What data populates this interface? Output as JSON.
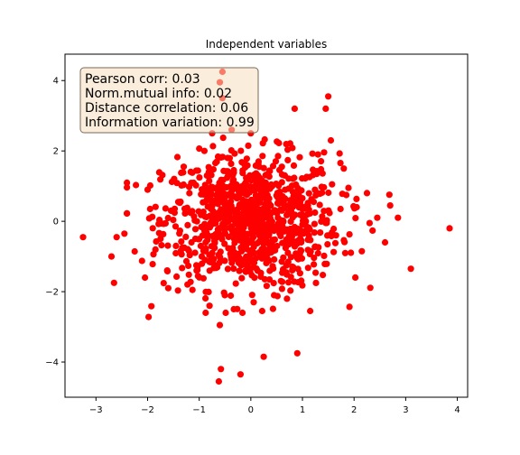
{
  "chart_data": {
    "type": "scatter",
    "title": "Independent variables",
    "xlabel": "",
    "ylabel": "",
    "xlim": [
      -3.6,
      4.2
    ],
    "ylim": [
      -5.0,
      4.75
    ],
    "xticks": [
      -3,
      -2,
      -1,
      0,
      1,
      2,
      3,
      4
    ],
    "yticks": [
      -4,
      -2,
      0,
      2,
      4
    ],
    "xtick_labels": [
      "−3",
      "−2",
      "−1",
      "0",
      "1",
      "2",
      "3",
      "4"
    ],
    "ytick_labels": [
      "−4",
      "−2",
      "0",
      "2",
      "4"
    ],
    "grid": false,
    "point_color": "#ff0000",
    "point_count": 1000,
    "annotation": {
      "lines": [
        "Pearson corr: 0.03",
        "Norm.mutual info: 0.02",
        "Distance correlation: 0.06",
        "Information variation: 0.99"
      ],
      "box_fill": "#f5dfbe",
      "box_edge": "#7a6a55",
      "placement": "top-left"
    },
    "series": [
      {
        "points": [
          [
            -3.25,
            -0.45
          ],
          [
            -2.7,
            -1.0
          ],
          [
            -2.65,
            -1.75
          ],
          [
            -2.6,
            -0.45
          ],
          [
            -2.45,
            -0.35
          ],
          [
            -2.05,
            -1.6
          ],
          [
            -1.98,
            -2.72
          ],
          [
            -2.0,
            0.9
          ],
          [
            -1.95,
            0.35
          ],
          [
            -1.6,
            -1.9
          ],
          [
            -1.45,
            -0.7
          ],
          [
            -1.3,
            1.55
          ],
          [
            -1.15,
            -0.6
          ],
          [
            -1.05,
            -1.4
          ],
          [
            -0.95,
            -1.0
          ],
          [
            -0.9,
            2.0
          ],
          [
            -0.85,
            1.3
          ],
          [
            -0.8,
            -2.4
          ],
          [
            -0.75,
            2.5
          ],
          [
            -0.6,
            -2.95
          ],
          [
            -0.6,
            3.95
          ],
          [
            -0.58,
            -4.2
          ],
          [
            -0.62,
            -4.55
          ],
          [
            -0.55,
            4.25
          ],
          [
            -0.55,
            3.5
          ],
          [
            -0.45,
            1.8
          ],
          [
            -0.2,
            -4.35
          ],
          [
            -0.2,
            -0.5
          ],
          [
            -0.1,
            1.1
          ],
          [
            0.0,
            2.5
          ],
          [
            0.05,
            -1.3
          ],
          [
            0.15,
            1.7
          ],
          [
            0.22,
            -2.55
          ],
          [
            0.25,
            -3.85
          ],
          [
            0.3,
            0.55
          ],
          [
            0.45,
            -2.1
          ],
          [
            0.6,
            1.55
          ],
          [
            0.7,
            -2.2
          ],
          [
            0.85,
            3.2
          ],
          [
            0.9,
            -3.75
          ],
          [
            1.0,
            0.35
          ],
          [
            1.15,
            -2.55
          ],
          [
            1.3,
            1.9
          ],
          [
            1.45,
            3.2
          ],
          [
            1.5,
            3.55
          ],
          [
            1.55,
            2.3
          ],
          [
            1.65,
            -0.4
          ],
          [
            1.8,
            1.5
          ],
          [
            2.05,
            0.4
          ],
          [
            2.15,
            -0.85
          ],
          [
            2.25,
            0.8
          ],
          [
            2.3,
            -0.05
          ],
          [
            2.45,
            0.1
          ],
          [
            2.6,
            -0.6
          ],
          [
            2.7,
            0.45
          ],
          [
            2.85,
            0.1
          ],
          [
            3.1,
            -1.35
          ],
          [
            3.85,
            -0.2
          ]
        ]
      }
    ]
  }
}
